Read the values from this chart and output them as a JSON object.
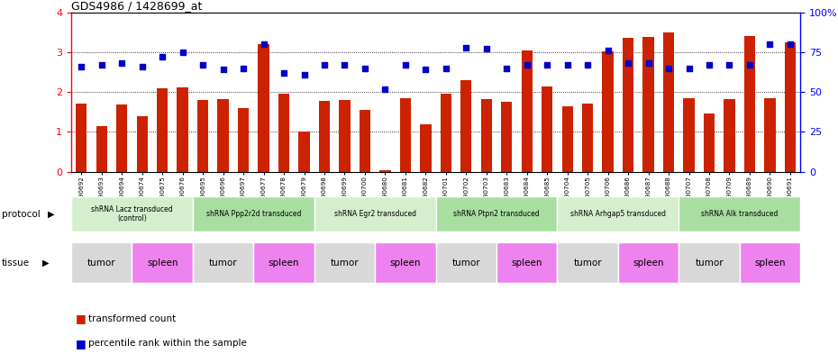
{
  "title": "GDS4986 / 1428699_at",
  "samples": [
    "GSM1290692",
    "GSM1290693",
    "GSM1290694",
    "GSM1290674",
    "GSM1290675",
    "GSM1290676",
    "GSM1290695",
    "GSM1290696",
    "GSM1290697",
    "GSM1290677",
    "GSM1290678",
    "GSM1290679",
    "GSM1290698",
    "GSM1290699",
    "GSM1290700",
    "GSM1290680",
    "GSM1290681",
    "GSM1290682",
    "GSM1290701",
    "GSM1290702",
    "GSM1290703",
    "GSM1290683",
    "GSM1290684",
    "GSM1290685",
    "GSM1290704",
    "GSM1290705",
    "GSM1290706",
    "GSM1290686",
    "GSM1290687",
    "GSM1290688",
    "GSM1290707",
    "GSM1290708",
    "GSM1290709",
    "GSM1290689",
    "GSM1290690",
    "GSM1290691"
  ],
  "bar_values": [
    1.7,
    1.15,
    1.68,
    1.4,
    2.1,
    2.12,
    1.8,
    1.82,
    1.6,
    3.2,
    1.95,
    1.0,
    1.78,
    1.8,
    1.55,
    0.03,
    1.85,
    1.2,
    1.95,
    2.3,
    1.82,
    1.75,
    3.05,
    2.15,
    1.65,
    1.7,
    3.02,
    3.35,
    3.38,
    3.5,
    1.84,
    1.45,
    1.82,
    3.4,
    1.85,
    3.25
  ],
  "percentile_values": [
    66,
    67,
    68,
    66,
    72,
    75,
    67,
    64,
    65,
    80,
    62,
    61,
    67,
    67,
    65,
    52,
    67,
    64,
    65,
    78,
    77,
    65,
    67,
    67,
    67,
    67,
    76,
    68,
    68,
    65,
    65,
    67,
    67,
    67,
    80,
    80
  ],
  "protocols": [
    {
      "label": "shRNA Lacz transduced\n(control)",
      "start": 0,
      "end": 5,
      "color": "#d4efcc"
    },
    {
      "label": "shRNA Ppp2r2d transduced",
      "start": 6,
      "end": 11,
      "color": "#a8dfa0"
    },
    {
      "label": "shRNA Egr2 transduced",
      "start": 12,
      "end": 17,
      "color": "#d4efcc"
    },
    {
      "label": "shRNA Ptpn2 transduced",
      "start": 18,
      "end": 23,
      "color": "#a8dfa0"
    },
    {
      "label": "shRNA Arhgap5 transduced",
      "start": 24,
      "end": 29,
      "color": "#d4efcc"
    },
    {
      "label": "shRNA Alk transduced",
      "start": 30,
      "end": 35,
      "color": "#a8dfa0"
    }
  ],
  "tissues": [
    {
      "label": "tumor",
      "start": 0,
      "end": 2,
      "color": "#d8d8d8"
    },
    {
      "label": "spleen",
      "start": 3,
      "end": 5,
      "color": "#ee82ee"
    },
    {
      "label": "tumor",
      "start": 6,
      "end": 8,
      "color": "#d8d8d8"
    },
    {
      "label": "spleen",
      "start": 9,
      "end": 11,
      "color": "#ee82ee"
    },
    {
      "label": "tumor",
      "start": 12,
      "end": 14,
      "color": "#d8d8d8"
    },
    {
      "label": "spleen",
      "start": 15,
      "end": 17,
      "color": "#ee82ee"
    },
    {
      "label": "tumor",
      "start": 18,
      "end": 20,
      "color": "#d8d8d8"
    },
    {
      "label": "spleen",
      "start": 21,
      "end": 23,
      "color": "#ee82ee"
    },
    {
      "label": "tumor",
      "start": 24,
      "end": 26,
      "color": "#d8d8d8"
    },
    {
      "label": "spleen",
      "start": 27,
      "end": 29,
      "color": "#ee82ee"
    },
    {
      "label": "tumor",
      "start": 30,
      "end": 32,
      "color": "#d8d8d8"
    },
    {
      "label": "spleen",
      "start": 33,
      "end": 35,
      "color": "#ee82ee"
    }
  ],
  "bar_color": "#cc2200",
  "dot_color": "#0000cc",
  "ylim_left": [
    0,
    4
  ],
  "ylim_right": [
    0,
    100
  ],
  "yticks_left": [
    0,
    1,
    2,
    3,
    4
  ],
  "yticks_right": [
    0,
    25,
    50,
    75,
    100
  ],
  "y2ticklabels": [
    "0",
    "25",
    "50",
    "75",
    "100%"
  ],
  "protocol_row_label": "protocol",
  "tissue_row_label": "tissue",
  "legend_bar_label": "transformed count",
  "legend_dot_label": "percentile rank within the sample",
  "bar_width": 0.55
}
